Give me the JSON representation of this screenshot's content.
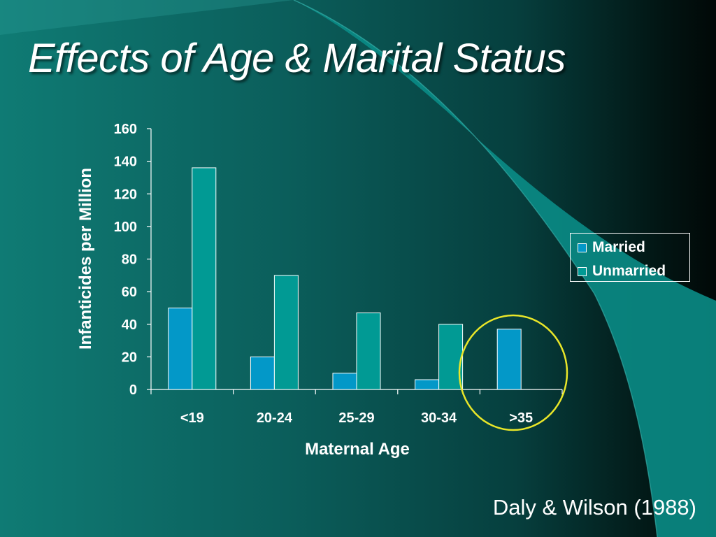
{
  "slide": {
    "title": "Effects of Age & Marital Status",
    "citation": "Daly & Wilson (1988)"
  },
  "colors": {
    "married": "#0398c8",
    "unmarried": "#019a94",
    "highlight_circle": "#e9e629",
    "text": "#ffffff"
  },
  "chart_data": {
    "type": "bar",
    "title": "",
    "xlabel": "Maternal Age",
    "ylabel": "Infanticides per Million",
    "categories": [
      "<19",
      "20-24",
      "25-29",
      "30-34",
      ">35"
    ],
    "series": [
      {
        "name": "Married",
        "values": [
          50,
          20,
          10,
          6,
          37
        ]
      },
      {
        "name": "Unmarried",
        "values": [
          136,
          70,
          47,
          40,
          null
        ]
      }
    ],
    "ylim": [
      0,
      160
    ],
    "yticks": [
      "0",
      "20",
      "40",
      "60",
      "80",
      "100",
      "120",
      "140",
      "160"
    ],
    "grid": false,
    "legend_position": "right",
    "highlighted_category": ">35"
  }
}
